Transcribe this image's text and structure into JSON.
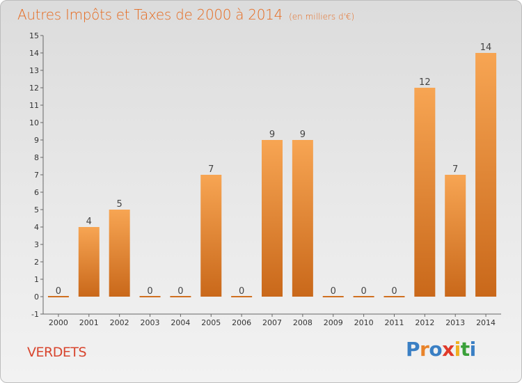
{
  "title": "Autres Impôts et Taxes de 2000 à 2014",
  "unit_label": "(en milliers d'€)",
  "commune": "VERDETS",
  "logo": {
    "letters": [
      "P",
      "r",
      "o",
      "x",
      "i",
      "t",
      "i"
    ],
    "colors": [
      "#3a7fc4",
      "#e8832a",
      "#3a7fc4",
      "#e03a2a",
      "#f0b020",
      "#3aa03a",
      "#3a7fc4"
    ]
  },
  "colors": {
    "title": "#e66a1f",
    "bar_light": "#f7a553",
    "bar_dark": "#c9681a",
    "commune": "#d8452e"
  },
  "chart_data": {
    "type": "bar",
    "title": "Autres Impôts et Taxes de 2000 à 2014",
    "subtitle": "(en milliers d'€)",
    "xlabel": "",
    "ylabel": "",
    "ylim": [
      -1,
      15
    ],
    "yticks": [
      "-1",
      "0",
      "1",
      "2",
      "3",
      "4",
      "5",
      "6",
      "7",
      "8",
      "9",
      "10",
      "11",
      "12",
      "13",
      "14",
      "15"
    ],
    "grid": false,
    "categories": [
      "2000",
      "2001",
      "2002",
      "2003",
      "2004",
      "2005",
      "2006",
      "2007",
      "2008",
      "2009",
      "2010",
      "2011",
      "2012",
      "2013",
      "2014"
    ],
    "values": [
      0,
      4,
      5,
      0,
      0,
      7,
      0,
      9,
      9,
      0,
      0,
      0,
      12,
      7,
      14
    ],
    "data_labels": [
      "0",
      "4",
      "5",
      "0",
      "0",
      "7",
      "0",
      "9",
      "9",
      "0",
      "0",
      "0",
      "12",
      "7",
      "14"
    ]
  }
}
